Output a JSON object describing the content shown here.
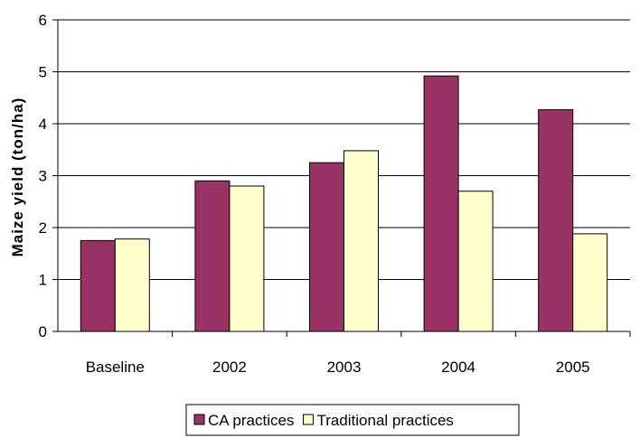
{
  "chart_data": {
    "type": "bar",
    "categories": [
      "Baseline",
      "2002",
      "2003",
      "2004",
      "2005"
    ],
    "series": [
      {
        "name": "CA practices",
        "values": [
          1.75,
          2.9,
          3.25,
          4.92,
          4.27
        ],
        "color": "#993366"
      },
      {
        "name": "Traditional practices",
        "values": [
          1.78,
          2.8,
          3.48,
          2.7,
          1.88
        ],
        "color": "#FFFFCC"
      }
    ],
    "ylabel": "Maize yield (ton/ha)",
    "xlabel": "",
    "ylim": [
      0,
      6
    ],
    "yticks": [
      "0",
      "1",
      "2",
      "3",
      "4",
      "5",
      "6"
    ],
    "grid": true,
    "legend_position": "bottom"
  }
}
